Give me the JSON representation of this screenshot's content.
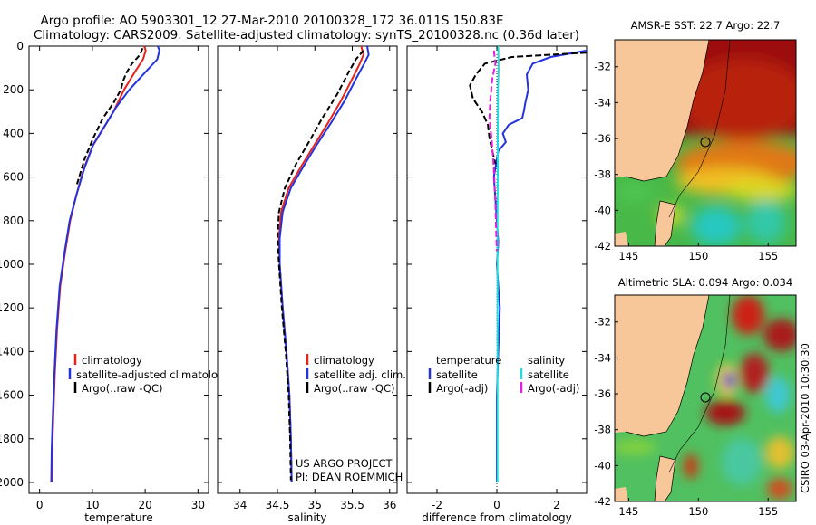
{
  "title_line1": "Argo profile: AO 5903301_12 27-Mar-2010 20100328_172 36.011S 150.83E",
  "title_line2": "Climatology: CARS2009. Satellite-adjusted climatology: synTS_20100328.nc (0.36d later)",
  "side_label": "CSIRO 03-Apr-2010 10:30:30",
  "credit_line1": "US ARGO PROJECT",
  "credit_line2": "PI: DEAN ROEMMICH",
  "colors": {
    "climatology": "#e8211b",
    "satellite": "#2233dd",
    "argo": "#000000",
    "sat_salt": "#22dddd",
    "argo_salt": "#e020e0",
    "land": "#f7c79a"
  },
  "chart_data": [
    {
      "type": "line",
      "panel": "temperature",
      "xlabel": "temperature",
      "ylabel": "",
      "xlim": [
        -2,
        32
      ],
      "ylim": [
        2050,
        0
      ],
      "xticks": [
        0,
        10,
        20,
        30
      ],
      "yticks": [
        0,
        200,
        400,
        600,
        800,
        1000,
        1200,
        1400,
        1600,
        1800,
        2000
      ],
      "legend": [
        "climatology",
        "satellite-adjusted climatology",
        "Argo(..raw -QC)"
      ],
      "series": [
        {
          "name": "climatology",
          "color": "#e8211b",
          "dash": "",
          "x": [
            19.8,
            20.1,
            19.6,
            18.0,
            16.0,
            14.0,
            12.0,
            10.0,
            8.4,
            7.0,
            5.8,
            4.8,
            3.9,
            3.3,
            2.9,
            2.6,
            2.4,
            2.3
          ],
          "y": [
            0,
            20,
            60,
            120,
            200,
            300,
            380,
            460,
            560,
            680,
            800,
            950,
            1100,
            1300,
            1500,
            1700,
            1850,
            2000
          ]
        },
        {
          "name": "satellite",
          "color": "#2233dd",
          "dash": "",
          "x": [
            22.4,
            22.7,
            22.3,
            20.0,
            17.0,
            14.5,
            12.5,
            10.2,
            8.5,
            7.0,
            5.7,
            4.7,
            3.8,
            3.2,
            2.8,
            2.5,
            2.3,
            2.2
          ],
          "y": [
            0,
            20,
            60,
            120,
            200,
            280,
            360,
            450,
            560,
            680,
            800,
            950,
            1100,
            1300,
            1500,
            1700,
            1850,
            2000
          ]
        },
        {
          "name": "Argo",
          "color": "#000000",
          "dash": "6,3",
          "x": [
            19.5,
            19.0,
            17.5,
            16.5,
            15.8,
            15.4,
            14.0,
            12.0,
            10.2,
            8.5,
            7.0
          ],
          "y": [
            10,
            40,
            80,
            120,
            160,
            200,
            260,
            330,
            420,
            520,
            640
          ]
        }
      ]
    },
    {
      "type": "line",
      "panel": "salinity",
      "xlabel": "salinity",
      "xlim": [
        33.7,
        36.1
      ],
      "ylim": [
        2050,
        0
      ],
      "xticks": [
        34,
        34.5,
        35,
        35.5,
        36
      ],
      "legend": [
        "climatology",
        "satellite adj. clim.",
        "Argo(..raw -QC)"
      ],
      "series": [
        {
          "name": "climatology",
          "color": "#e8211b",
          "dash": "",
          "x": [
            35.62,
            35.65,
            35.6,
            35.5,
            35.35,
            35.18,
            35.0,
            34.82,
            34.65,
            34.55,
            34.52,
            34.53,
            34.57,
            34.62,
            34.66,
            34.68,
            34.69
          ],
          "y": [
            0,
            40,
            80,
            150,
            250,
            350,
            450,
            550,
            650,
            760,
            880,
            1000,
            1200,
            1400,
            1600,
            1800,
            2000
          ]
        },
        {
          "name": "satellite",
          "color": "#2233dd",
          "dash": "",
          "x": [
            35.7,
            35.72,
            35.66,
            35.55,
            35.4,
            35.22,
            35.03,
            34.85,
            34.68,
            34.57,
            34.53,
            34.53,
            34.57,
            34.62,
            34.66,
            34.68,
            34.69
          ],
          "y": [
            0,
            40,
            80,
            150,
            250,
            350,
            450,
            550,
            650,
            760,
            880,
            1000,
            1200,
            1400,
            1600,
            1800,
            2000
          ]
        },
        {
          "name": "Argo",
          "color": "#000000",
          "dash": "6,3",
          "x": [
            35.65,
            35.55,
            35.45,
            35.3,
            35.1,
            34.92,
            34.75,
            34.6,
            34.52,
            34.5,
            34.52,
            34.56,
            34.61,
            34.65,
            34.67,
            34.68
          ],
          "y": [
            20,
            60,
            120,
            220,
            330,
            440,
            540,
            650,
            760,
            880,
            1000,
            1200,
            1400,
            1600,
            1800,
            1990
          ]
        }
      ]
    },
    {
      "type": "line",
      "panel": "difference",
      "xlabel": "difference from climatology",
      "xlim": [
        -3,
        3
      ],
      "ylim": [
        2050,
        0
      ],
      "xticks": [
        -2,
        0,
        2
      ],
      "legend": [
        "temperature",
        "satellite",
        "Argo(-adj)",
        "salinity",
        "satellite",
        "Argo(-adj)"
      ],
      "series": [
        {
          "name": "T satellite",
          "color": "#2233dd",
          "dash": "",
          "x": [
            3.0,
            1.8,
            1.2,
            1.0,
            1.05,
            0.95,
            0.9,
            0.85,
            0.4,
            0.2,
            0.3,
            0.05,
            -0.1,
            -0.05,
            0.0,
            0.05,
            0.0,
            0.05,
            0.1,
            0.05,
            0.0,
            0.0,
            0.0
          ],
          "y": [
            20,
            50,
            80,
            130,
            200,
            260,
            300,
            330,
            360,
            400,
            440,
            480,
            600,
            700,
            800,
            900,
            1000,
            1100,
            1200,
            1400,
            1600,
            1800,
            2000
          ]
        },
        {
          "name": "T Argo",
          "color": "#000000",
          "dash": "7,3",
          "x": [
            3.0,
            0.5,
            -0.4,
            -0.7,
            -0.9,
            -0.8,
            -0.5,
            -0.3,
            -0.25,
            -0.15,
            -0.05
          ],
          "y": [
            30,
            50,
            80,
            130,
            180,
            240,
            300,
            360,
            420,
            480,
            540
          ]
        },
        {
          "name": "S satellite",
          "color": "#22dddd",
          "dash": "",
          "x": [
            0.05,
            0.06,
            0.04,
            0.03,
            0.03,
            0.02,
            0.02,
            0.02,
            0.02,
            0.02,
            0.02
          ],
          "y": [
            0,
            100,
            200,
            400,
            600,
            800,
            1000,
            1200,
            1500,
            1800,
            2000
          ]
        },
        {
          "name": "S Argo",
          "color": "#e020e0",
          "dash": "7,3",
          "x": [
            -0.1,
            -0.05,
            -0.15,
            -0.22,
            -0.25,
            -0.18,
            -0.12,
            -0.08,
            -0.05,
            -0.03,
            0.0
          ],
          "y": [
            20,
            80,
            150,
            250,
            330,
            420,
            520,
            620,
            720,
            820,
            940
          ]
        }
      ]
    },
    {
      "type": "heatmap",
      "panel": "sst-map",
      "title": "AMSR-E SST: 22.7 Argo: 22.7",
      "xlim": [
        144,
        157
      ],
      "ylim": [
        -42,
        -30.5
      ],
      "xticks": [
        145,
        150,
        155
      ],
      "yticks": [
        -32,
        -34,
        -36,
        -38,
        -40,
        -42
      ],
      "marker": {
        "lon": 150.83,
        "lat": -36.011
      }
    },
    {
      "type": "heatmap",
      "panel": "sla-map",
      "title": "Altimetric SLA: 0.094 Argo: 0.034",
      "xlim": [
        144,
        157
      ],
      "ylim": [
        -42,
        -30.5
      ],
      "xticks": [
        145,
        150,
        155
      ],
      "yticks": [
        -32,
        -34,
        -36,
        -38,
        -40,
        -42
      ],
      "marker": {
        "lon": 150.83,
        "lat": -36.011
      }
    }
  ]
}
